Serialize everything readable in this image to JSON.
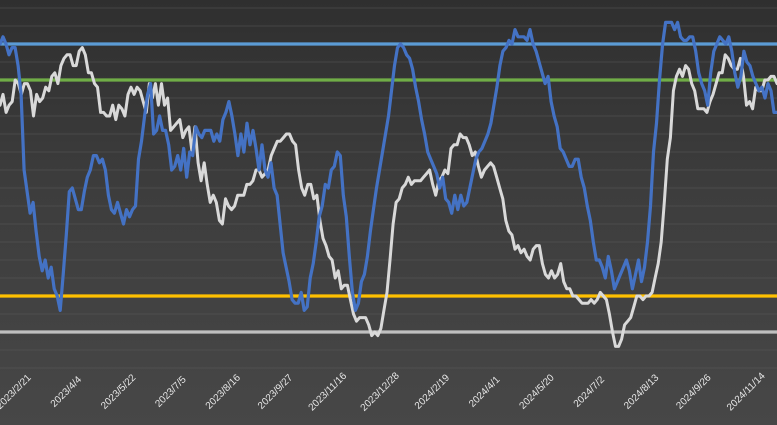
{
  "chart_data": {
    "type": "line",
    "title": "",
    "xlabel": "",
    "ylabel": "",
    "x_tick_labels": [
      "2023/2/21",
      "2023/4/4",
      "2023/5/22",
      "2023/7/5",
      "2023/8/16",
      "2023/9/27",
      "2023/11/16",
      "2023/12/28",
      "2024/2/19",
      "2024/4/1",
      "2024/5/20",
      "2024/7/2",
      "2024/8/13",
      "2024/9/26",
      "2024/11/14"
    ],
    "ylim": [
      0,
      100
    ],
    "grid": true,
    "legend": "none",
    "reference_lines": [
      {
        "value": 90,
        "color": "#5b9bd5"
      },
      {
        "value": 80,
        "color": "#70ad47"
      },
      {
        "value": 20,
        "color": "#ffc000"
      },
      {
        "value": 10,
        "color": "#bfbfbf"
      }
    ],
    "series": [
      {
        "color": "#d9d9d9",
        "values": [
          73,
          76,
          71,
          73,
          74,
          80,
          79,
          76,
          79,
          79,
          77,
          70,
          76,
          74,
          75,
          78,
          77,
          81,
          82,
          79,
          84,
          86,
          87,
          87,
          84,
          84,
          88,
          89,
          87,
          82,
          82,
          79,
          78,
          71,
          71,
          70,
          70,
          73,
          69,
          73,
          72,
          70,
          76,
          78,
          76,
          78,
          77,
          74,
          71,
          79,
          75,
          79,
          73,
          79,
          73,
          75,
          66,
          67,
          68,
          69,
          64,
          66,
          67,
          60,
          67,
          57,
          52,
          57,
          51,
          46,
          48,
          46,
          41,
          40,
          47,
          45,
          44,
          45,
          48,
          48,
          48,
          51,
          51,
          52,
          55,
          55,
          53,
          54,
          55,
          59,
          61,
          63,
          63,
          64,
          65,
          65,
          63,
          62,
          55,
          50,
          48,
          51,
          51,
          47,
          48,
          41,
          36,
          34,
          31,
          30,
          25,
          27,
          22,
          23,
          23,
          19,
          15,
          13,
          14,
          14,
          14,
          12,
          9,
          10,
          9,
          11,
          16,
          21,
          30,
          40,
          46,
          47,
          50,
          51,
          53,
          51,
          52,
          52,
          52,
          53,
          54,
          55,
          51,
          48,
          52,
          53,
          55,
          54,
          61,
          62,
          62,
          65,
          64,
          64,
          62,
          59,
          60,
          56,
          53,
          55,
          56,
          57,
          56,
          53,
          50,
          47,
          41,
          38,
          37,
          33,
          34,
          32,
          33,
          31,
          30,
          33,
          34,
          34,
          29,
          26,
          25,
          27,
          25,
          26,
          29,
          24,
          22,
          22,
          20,
          20,
          19,
          18,
          18,
          18,
          19,
          18,
          19,
          21,
          20,
          19,
          15,
          10,
          6,
          6,
          8,
          12,
          13,
          14,
          17,
          20,
          20,
          19,
          20,
          20,
          21,
          25,
          29,
          35,
          46,
          58,
          64,
          77,
          81,
          83,
          81,
          84,
          83,
          79,
          77,
          72,
          72,
          72,
          71,
          74,
          76,
          79,
          82,
          82,
          87,
          86,
          84,
          83,
          83,
          86,
          81,
          73,
          74,
          72,
          78,
          77,
          77,
          80,
          80,
          81,
          81,
          79
        ]
      },
      {
        "color": "#4472c4",
        "values": [
          90,
          92,
          90,
          87,
          89,
          89,
          84,
          76,
          55,
          49,
          43,
          46,
          38,
          31,
          27,
          30,
          25,
          28,
          22,
          20,
          16,
          26,
          37,
          49,
          50,
          47,
          44,
          44,
          49,
          53,
          55,
          59,
          59,
          57,
          58,
          55,
          48,
          44,
          43,
          46,
          43,
          40,
          44,
          42,
          44,
          45,
          58,
          63,
          70,
          76,
          79,
          65,
          66,
          70,
          66,
          66,
          62,
          55,
          56,
          59,
          55,
          61,
          53,
          60,
          59,
          67,
          65,
          64,
          66,
          66,
          66,
          63,
          65,
          63,
          69,
          71,
          74,
          70,
          65,
          59,
          65,
          60,
          68,
          62,
          66,
          61,
          55,
          62,
          55,
          53,
          57,
          50,
          48,
          40,
          32,
          28,
          24,
          19,
          18,
          18,
          21,
          16,
          17,
          25,
          29,
          35,
          42,
          45,
          51,
          50,
          55,
          56,
          60,
          59,
          48,
          42,
          31,
          21,
          16,
          18,
          24,
          26,
          31,
          38,
          44,
          50,
          55,
          60,
          65,
          70,
          77,
          84,
          89,
          90,
          89,
          87,
          86,
          83,
          78,
          74,
          69,
          65,
          60,
          58,
          56,
          54,
          50,
          53,
          47,
          46,
          43,
          48,
          44,
          48,
          45,
          46,
          50,
          54,
          58,
          60,
          61,
          63,
          65,
          68,
          73,
          78,
          84,
          88,
          89,
          91,
          90,
          94,
          92,
          92,
          92,
          91,
          94,
          90,
          88,
          85,
          82,
          79,
          81,
          74,
          70,
          67,
          61,
          60,
          58,
          56,
          56,
          58,
          58,
          53,
          50,
          45,
          41,
          35,
          30,
          30,
          28,
          25,
          31,
          27,
          22,
          24,
          26,
          28,
          30,
          27,
          22,
          26,
          30,
          24,
          28,
          35,
          45,
          60,
          68,
          80,
          90,
          96,
          96,
          96,
          94,
          96,
          92,
          91,
          91,
          92,
          92,
          88,
          82,
          79,
          77,
          73,
          82,
          88,
          90,
          92,
          91,
          90,
          92,
          88,
          82,
          78,
          81,
          88,
          85,
          84,
          81,
          79,
          77,
          78,
          75,
          79,
          77,
          71,
          71
        ]
      }
    ]
  }
}
